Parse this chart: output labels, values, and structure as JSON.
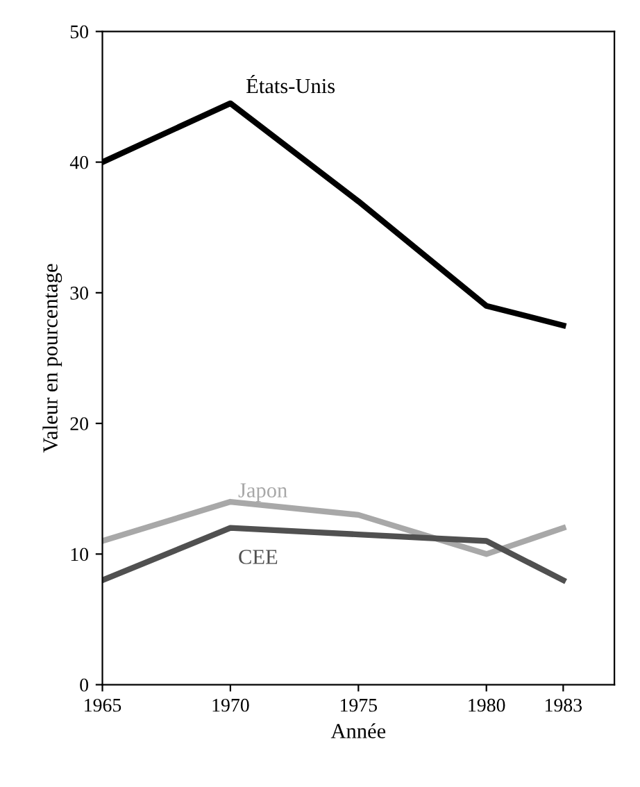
{
  "chart_data": {
    "type": "line",
    "xlabel": "Année",
    "ylabel": "Valeur en pourcentage",
    "x": [
      1965,
      1970,
      1975,
      1980,
      1983
    ],
    "series": [
      {
        "name": "États-Unis",
        "color": "#000000",
        "values": [
          40,
          44.5,
          37,
          29,
          27.5
        ]
      },
      {
        "name": "Japon",
        "color": "#a8a8a8",
        "values": [
          11,
          14,
          13,
          10,
          12
        ]
      },
      {
        "name": "CEE",
        "color": "#505050",
        "values": [
          8,
          12,
          11.5,
          11,
          8
        ]
      }
    ],
    "xlim": [
      1965,
      1985
    ],
    "xticks": [
      1965,
      1970,
      1975,
      1980,
      1983
    ],
    "ylim": [
      0,
      50
    ],
    "yticks": [
      0,
      10,
      20,
      30,
      40,
      50
    ],
    "grid": false,
    "legend": false,
    "line_style": "solid",
    "marker": "none"
  }
}
